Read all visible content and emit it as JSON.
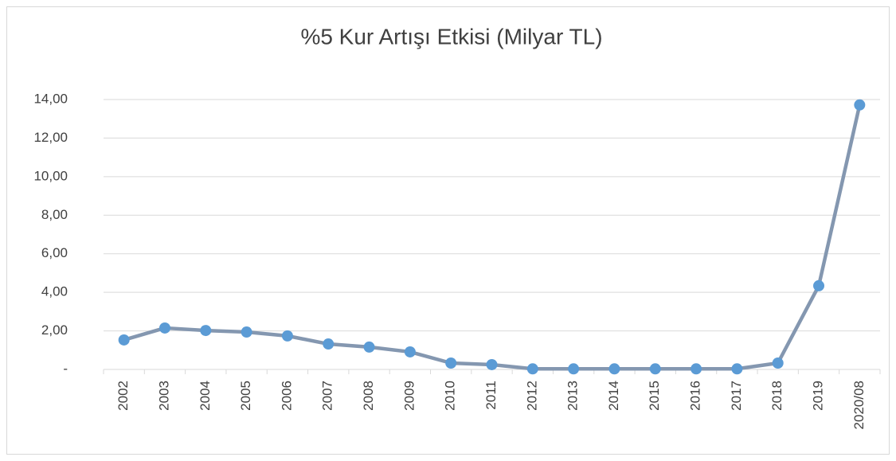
{
  "chart_data": {
    "type": "line",
    "title": "%5 Kur Artışı Etkisi (Milyar TL)",
    "categories": [
      "2002",
      "2003",
      "2004",
      "2005",
      "2006",
      "2007",
      "2008",
      "2009",
      "2010",
      "2011",
      "2012",
      "2013",
      "2014",
      "2015",
      "2016",
      "2017",
      "2018",
      "2019",
      "2020/08"
    ],
    "values": [
      1.53,
      2.15,
      2.02,
      1.94,
      1.74,
      1.32,
      1.16,
      0.91,
      0.33,
      0.25,
      0.03,
      0.03,
      0.03,
      0.03,
      0.03,
      0.03,
      0.33,
      4.34,
      13.72
    ],
    "color": "#8497b0",
    "marker_color": "#5b9bd5",
    "ylim": [
      0,
      14
    ],
    "yticks": [
      {
        "value": 0,
        "label": "-"
      },
      {
        "value": 2,
        "label": "2,00"
      },
      {
        "value": 4,
        "label": "4,00"
      },
      {
        "value": 6,
        "label": "6,00"
      },
      {
        "value": 8,
        "label": "8,00"
      },
      {
        "value": 10,
        "label": "10,00"
      },
      {
        "value": 12,
        "label": "12,00"
      },
      {
        "value": 14,
        "label": "14,00"
      }
    ],
    "grid": true
  }
}
